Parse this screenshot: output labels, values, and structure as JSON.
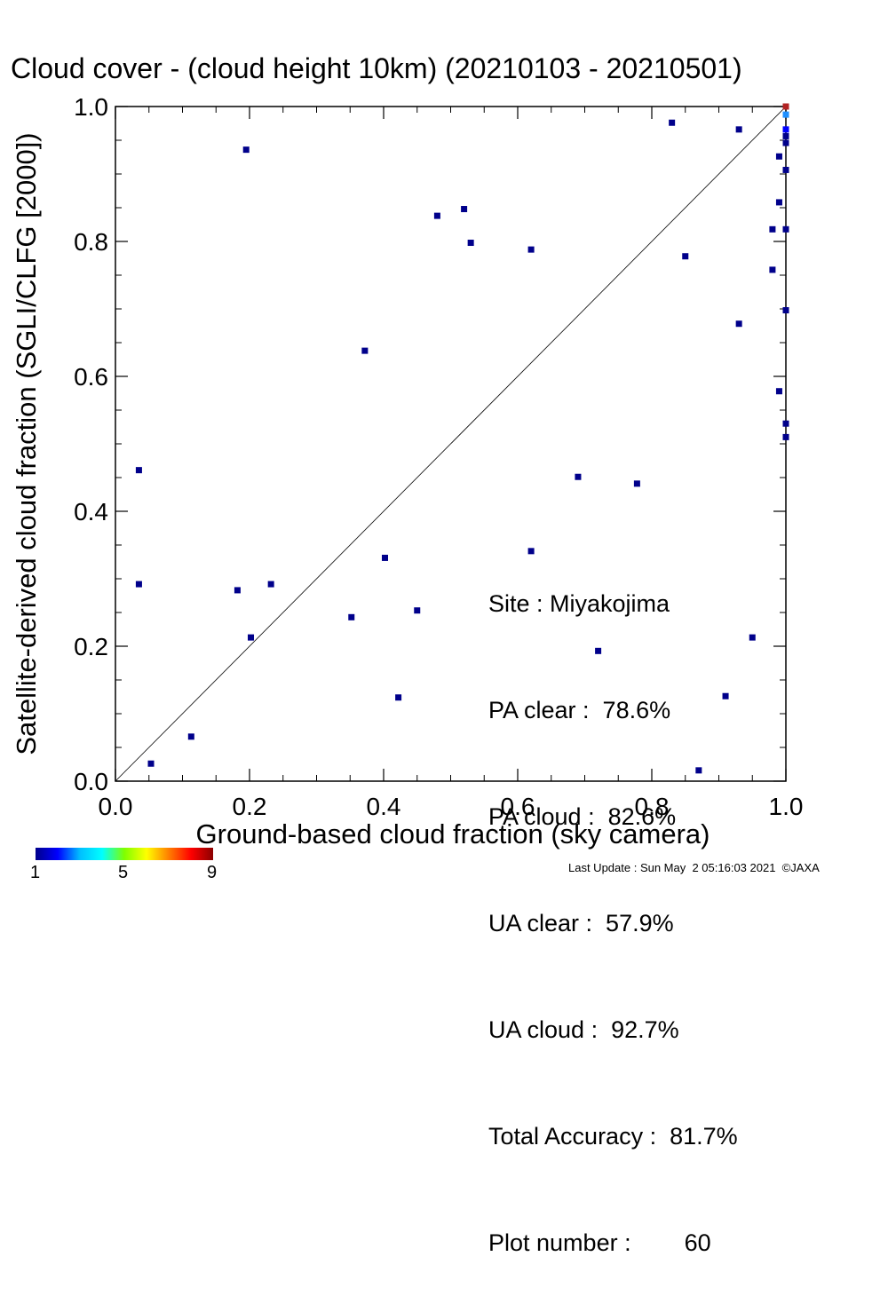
{
  "stats": {
    "site": "Site : Miyakojima",
    "pa_clear": "PA clear :  78.6%",
    "pa_cloud": "PA cloud :  82.6%",
    "ua_clear": "UA clear :  57.9%",
    "ua_cloud": "UA cloud :  92.7%",
    "total_accuracy": "Total Accuracy :  81.7%",
    "plot_number": "Plot number :        60"
  },
  "colorbar": {
    "labels": [
      "1",
      "5",
      "9"
    ],
    "colors": [
      "#00008b",
      "#0000ff",
      "#00bfff",
      "#00ffff",
      "#7fff00",
      "#ffff00",
      "#ff7f00",
      "#ff0000",
      "#8b0000"
    ]
  },
  "footer": "Last Update : Sun May  2 05:16:03 2021  ©JAXA",
  "chart_data": {
    "type": "scatter",
    "title": "Cloud cover - (cloud height 10km)  (20210103 - 20210501)",
    "xlabel": "Ground-based cloud fraction (sky camera)",
    "ylabel": "Satellite-derived cloud fraction (SGLI/CLFG [2000])",
    "xlim": [
      0.0,
      1.0
    ],
    "ylim": [
      0.0,
      1.0
    ],
    "x_ticks": [
      "0.0",
      "0.2",
      "0.4",
      "0.6",
      "0.8",
      "1.0"
    ],
    "y_ticks": [
      "0.0",
      "0.2",
      "0.4",
      "0.6",
      "0.8",
      "1.0"
    ],
    "diagonal_line": true,
    "point_color_default": "#00008b",
    "points": [
      {
        "x": 0.195,
        "y": 0.936
      },
      {
        "x": 0.48,
        "y": 0.838
      },
      {
        "x": 0.52,
        "y": 0.848
      },
      {
        "x": 0.53,
        "y": 0.798
      },
      {
        "x": 0.62,
        "y": 0.788
      },
      {
        "x": 0.83,
        "y": 0.976
      },
      {
        "x": 0.93,
        "y": 0.966
      },
      {
        "x": 0.85,
        "y": 0.778
      },
      {
        "x": 0.93,
        "y": 0.678
      },
      {
        "x": 0.372,
        "y": 0.638
      },
      {
        "x": 0.035,
        "y": 0.461
      },
      {
        "x": 0.69,
        "y": 0.451
      },
      {
        "x": 0.778,
        "y": 0.441
      },
      {
        "x": 0.62,
        "y": 0.341
      },
      {
        "x": 0.402,
        "y": 0.331
      },
      {
        "x": 0.035,
        "y": 0.292
      },
      {
        "x": 0.182,
        "y": 0.283
      },
      {
        "x": 0.232,
        "y": 0.292
      },
      {
        "x": 0.352,
        "y": 0.243
      },
      {
        "x": 0.45,
        "y": 0.253
      },
      {
        "x": 0.202,
        "y": 0.213
      },
      {
        "x": 0.72,
        "y": 0.193
      },
      {
        "x": 0.95,
        "y": 0.213
      },
      {
        "x": 0.91,
        "y": 0.126
      },
      {
        "x": 0.422,
        "y": 0.124
      },
      {
        "x": 0.113,
        "y": 0.066
      },
      {
        "x": 0.053,
        "y": 0.026
      },
      {
        "x": 0.87,
        "y": 0.016
      },
      {
        "x": 0.98,
        "y": 0.818
      },
      {
        "x": 0.98,
        "y": 0.758
      },
      {
        "x": 0.99,
        "y": 0.858
      },
      {
        "x": 0.99,
        "y": 0.926
      },
      {
        "x": 0.99,
        "y": 0.578
      },
      {
        "x": 1.0,
        "y": 0.906
      },
      {
        "x": 1.0,
        "y": 0.818
      },
      {
        "x": 1.0,
        "y": 0.698
      },
      {
        "x": 1.0,
        "y": 0.53
      },
      {
        "x": 1.0,
        "y": 0.51
      },
      {
        "x": 1.0,
        "y": 0.946
      },
      {
        "x": 1.0,
        "y": 0.956
      },
      {
        "x": 1.0,
        "y": 0.966,
        "color": "#0000ff"
      },
      {
        "x": 1.0,
        "y": 0.988,
        "color": "#1e90ff"
      },
      {
        "x": 1.0,
        "y": 1.0,
        "color": "#b22222"
      }
    ]
  }
}
